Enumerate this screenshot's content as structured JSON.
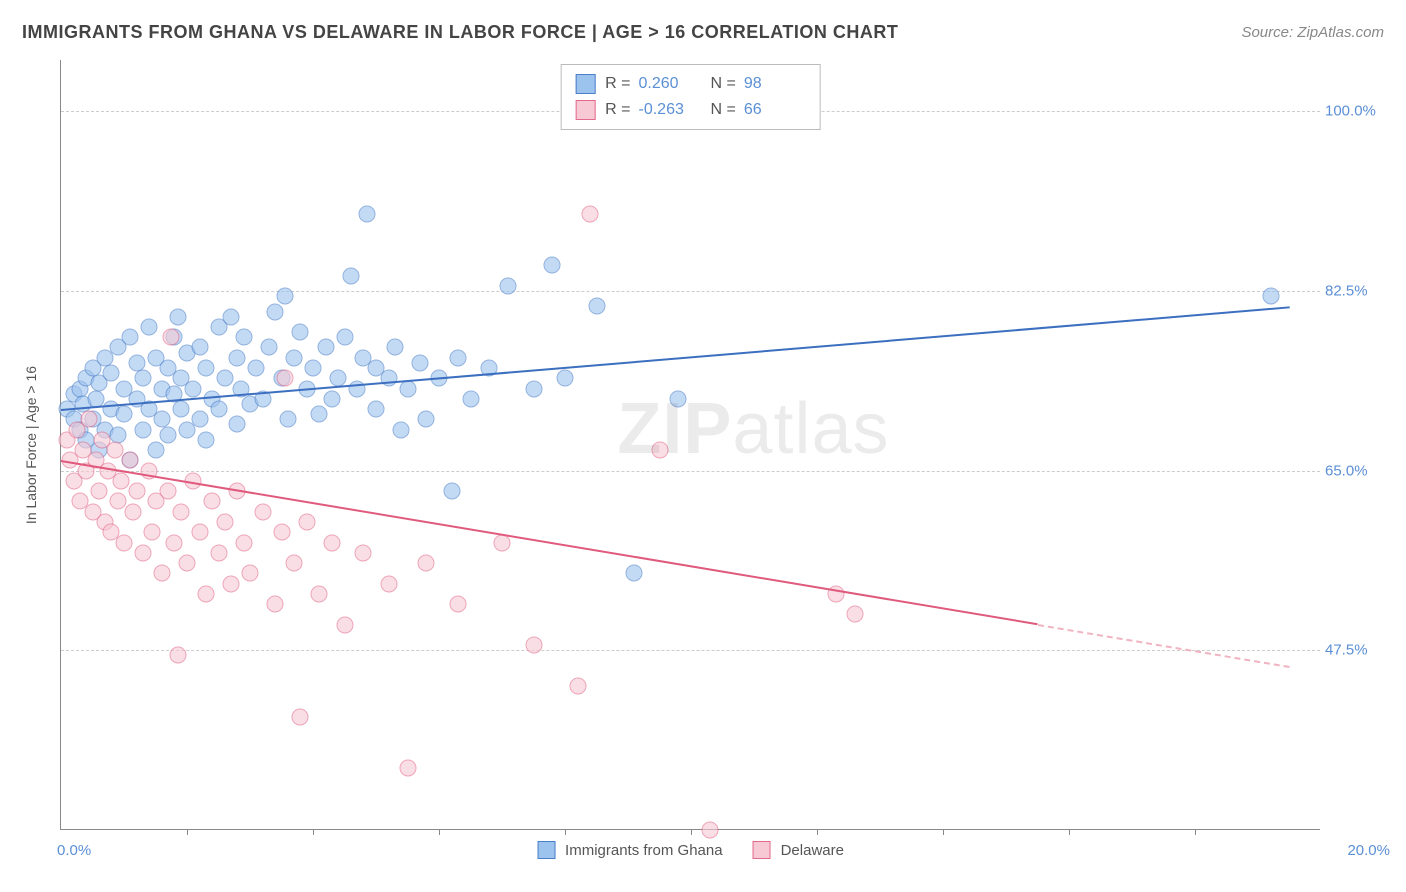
{
  "title": "IMMIGRANTS FROM GHANA VS DELAWARE IN LABOR FORCE | AGE > 16 CORRELATION CHART",
  "source": "Source: ZipAtlas.com",
  "watermark_bold": "ZIP",
  "watermark_light": "atlas",
  "chart": {
    "type": "scatter",
    "background_color": "#ffffff",
    "grid_color": "#cccccc",
    "axis_color": "#888888",
    "tick_color": "#5b8fd6",
    "xlim": [
      0,
      20
    ],
    "ylim": [
      30,
      105
    ],
    "xlabel_min": "0.0%",
    "xlabel_max": "20.0%",
    "ylabel": "In Labor Force | Age > 16",
    "ytick_positions": [
      47.5,
      65.0,
      82.5,
      100.0
    ],
    "ytick_labels": [
      "47.5%",
      "65.0%",
      "82.5%",
      "100.0%"
    ],
    "xtick_positions": [
      2,
      4,
      6,
      8,
      10,
      12,
      14,
      16,
      18
    ],
    "marker_size": 17,
    "marker_opacity": 0.6,
    "line_width": 2
  },
  "series": [
    {
      "name": "Immigrants from Ghana",
      "color_fill": "#9cc2ee",
      "color_stroke": "#4a7fc9",
      "R": "0.260",
      "N": "98",
      "trend": {
        "x1": 0,
        "y1": 71,
        "x2": 19.5,
        "y2": 81,
        "dashed_from_x": null
      },
      "points": [
        [
          0.1,
          71
        ],
        [
          0.2,
          70
        ],
        [
          0.2,
          72.5
        ],
        [
          0.3,
          69
        ],
        [
          0.3,
          73
        ],
        [
          0.35,
          71.5
        ],
        [
          0.4,
          68
        ],
        [
          0.4,
          74
        ],
        [
          0.5,
          70
        ],
        [
          0.5,
          75
        ],
        [
          0.55,
          72
        ],
        [
          0.6,
          67
        ],
        [
          0.6,
          73.5
        ],
        [
          0.7,
          69
        ],
        [
          0.7,
          76
        ],
        [
          0.8,
          71
        ],
        [
          0.8,
          74.5
        ],
        [
          0.9,
          68.5
        ],
        [
          0.9,
          77
        ],
        [
          1.0,
          70.5
        ],
        [
          1.0,
          73
        ],
        [
          1.1,
          66
        ],
        [
          1.1,
          78
        ],
        [
          1.2,
          72
        ],
        [
          1.2,
          75.5
        ],
        [
          1.3,
          69
        ],
        [
          1.3,
          74
        ],
        [
          1.4,
          71
        ],
        [
          1.4,
          79
        ],
        [
          1.5,
          67
        ],
        [
          1.5,
          76
        ],
        [
          1.6,
          73
        ],
        [
          1.6,
          70
        ],
        [
          1.7,
          75
        ],
        [
          1.7,
          68.5
        ],
        [
          1.8,
          72.5
        ],
        [
          1.8,
          78
        ],
        [
          1.85,
          80
        ],
        [
          1.9,
          71
        ],
        [
          1.9,
          74
        ],
        [
          2.0,
          76.5
        ],
        [
          2.0,
          69
        ],
        [
          2.1,
          73
        ],
        [
          2.2,
          77
        ],
        [
          2.2,
          70
        ],
        [
          2.3,
          75
        ],
        [
          2.3,
          68
        ],
        [
          2.4,
          72
        ],
        [
          2.5,
          79
        ],
        [
          2.5,
          71
        ],
        [
          2.6,
          74
        ],
        [
          2.7,
          80
        ],
        [
          2.8,
          69.5
        ],
        [
          2.8,
          76
        ],
        [
          2.85,
          73
        ],
        [
          2.9,
          78
        ],
        [
          3.0,
          71.5
        ],
        [
          3.1,
          75
        ],
        [
          3.2,
          72
        ],
        [
          3.3,
          77
        ],
        [
          3.4,
          80.5
        ],
        [
          3.5,
          74
        ],
        [
          3.55,
          82
        ],
        [
          3.6,
          70
        ],
        [
          3.7,
          76
        ],
        [
          3.8,
          78.5
        ],
        [
          3.9,
          73
        ],
        [
          4.0,
          75
        ],
        [
          4.1,
          70.5
        ],
        [
          4.2,
          77
        ],
        [
          4.3,
          72
        ],
        [
          4.4,
          74
        ],
        [
          4.5,
          78
        ],
        [
          4.6,
          84
        ],
        [
          4.7,
          73
        ],
        [
          4.8,
          76
        ],
        [
          4.85,
          90
        ],
        [
          5.0,
          71
        ],
        [
          5.0,
          75
        ],
        [
          5.2,
          74
        ],
        [
          5.3,
          77
        ],
        [
          5.4,
          69
        ],
        [
          5.5,
          73
        ],
        [
          5.7,
          75.5
        ],
        [
          5.8,
          70
        ],
        [
          6.0,
          74
        ],
        [
          6.2,
          63
        ],
        [
          6.3,
          76
        ],
        [
          6.5,
          72
        ],
        [
          6.8,
          75
        ],
        [
          7.1,
          83
        ],
        [
          7.5,
          73
        ],
        [
          7.8,
          85
        ],
        [
          8.0,
          74
        ],
        [
          8.5,
          81
        ],
        [
          9.1,
          55
        ],
        [
          9.8,
          72
        ],
        [
          19.2,
          82
        ]
      ]
    },
    {
      "name": "Delaware",
      "color_fill": "#f7c9d4",
      "color_stroke": "#e26a8a",
      "R": "-0.263",
      "N": "66",
      "trend": {
        "x1": 0,
        "y1": 66,
        "x2": 19.5,
        "y2": 46,
        "dashed_from_x": 15.5
      },
      "points": [
        [
          0.1,
          68
        ],
        [
          0.15,
          66
        ],
        [
          0.2,
          64
        ],
        [
          0.25,
          69
        ],
        [
          0.3,
          62
        ],
        [
          0.35,
          67
        ],
        [
          0.4,
          65
        ],
        [
          0.45,
          70
        ],
        [
          0.5,
          61
        ],
        [
          0.55,
          66
        ],
        [
          0.6,
          63
        ],
        [
          0.65,
          68
        ],
        [
          0.7,
          60
        ],
        [
          0.75,
          65
        ],
        [
          0.8,
          59
        ],
        [
          0.85,
          67
        ],
        [
          0.9,
          62
        ],
        [
          0.95,
          64
        ],
        [
          1.0,
          58
        ],
        [
          1.1,
          66
        ],
        [
          1.15,
          61
        ],
        [
          1.2,
          63
        ],
        [
          1.3,
          57
        ],
        [
          1.4,
          65
        ],
        [
          1.45,
          59
        ],
        [
          1.5,
          62
        ],
        [
          1.6,
          55
        ],
        [
          1.7,
          63
        ],
        [
          1.75,
          78
        ],
        [
          1.8,
          58
        ],
        [
          1.85,
          47
        ],
        [
          1.9,
          61
        ],
        [
          2.0,
          56
        ],
        [
          2.1,
          64
        ],
        [
          2.2,
          59
        ],
        [
          2.3,
          53
        ],
        [
          2.4,
          62
        ],
        [
          2.5,
          57
        ],
        [
          2.6,
          60
        ],
        [
          2.7,
          54
        ],
        [
          2.8,
          63
        ],
        [
          2.9,
          58
        ],
        [
          3.0,
          55
        ],
        [
          3.2,
          61
        ],
        [
          3.4,
          52
        ],
        [
          3.5,
          59
        ],
        [
          3.55,
          74
        ],
        [
          3.7,
          56
        ],
        [
          3.8,
          41
        ],
        [
          3.9,
          60
        ],
        [
          4.1,
          53
        ],
        [
          4.3,
          58
        ],
        [
          4.5,
          50
        ],
        [
          4.8,
          57
        ],
        [
          5.2,
          54
        ],
        [
          5.5,
          36
        ],
        [
          5.8,
          56
        ],
        [
          6.3,
          52
        ],
        [
          7.0,
          58
        ],
        [
          7.5,
          48
        ],
        [
          8.2,
          44
        ],
        [
          8.4,
          90
        ],
        [
          9.5,
          67
        ],
        [
          10.3,
          30
        ],
        [
          12.3,
          53
        ],
        [
          12.6,
          51
        ]
      ]
    }
  ],
  "legend_top": {
    "r_label": "R =",
    "n_label": "N ="
  },
  "legend_bottom": {
    "items": [
      "Immigrants from Ghana",
      "Delaware"
    ]
  }
}
